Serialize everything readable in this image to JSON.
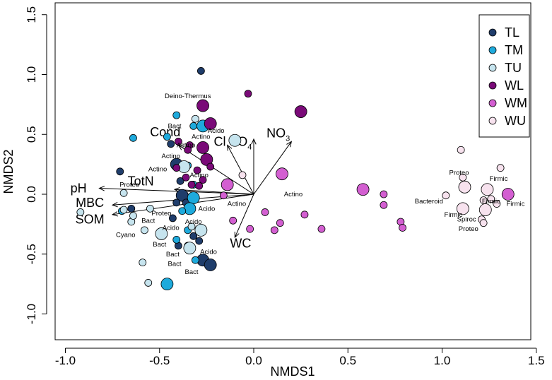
{
  "chart_data": {
    "type": "scatter",
    "xlabel": "NMDS1",
    "ylabel": "NMDS2",
    "xlim": [
      -1.1,
      1.57
    ],
    "ylim": [
      -1.07,
      1.62
    ],
    "xticks": [
      -1.0,
      -0.5,
      0.0,
      0.5,
      1.0,
      1.5
    ],
    "xtick_labels": [
      "-1.0",
      "-0.5",
      "0.0",
      "0.5",
      "1.0",
      "1.5"
    ],
    "yticks": [
      -1.0,
      -0.5,
      0.0,
      0.5,
      1.0,
      1.5
    ],
    "ytick_labels": [
      "-1.0",
      "-0.5",
      "0.0",
      "0.5",
      "1.0",
      "1.5"
    ],
    "legend_position": "top-right",
    "series": [
      {
        "name": "TL",
        "color": "#1f3d6b",
        "points": [
          [
            -0.28,
            1.03,
            "s"
          ],
          [
            -0.44,
            0.42,
            "s"
          ],
          [
            -0.71,
            0.19,
            "s"
          ],
          [
            -0.41,
            0.25,
            "l"
          ],
          [
            -0.39,
            0.11,
            "s"
          ],
          [
            -0.38,
            -0.01,
            "l"
          ],
          [
            -0.41,
            -0.07,
            "s"
          ],
          [
            -0.36,
            -0.07,
            "s"
          ],
          [
            -0.65,
            -0.12,
            "s"
          ],
          [
            -0.43,
            -0.2,
            "s"
          ],
          [
            -0.32,
            -0.35,
            "s"
          ],
          [
            -0.29,
            -0.39,
            "s"
          ],
          [
            -0.4,
            -0.43,
            "s"
          ],
          [
            -0.35,
            -0.43,
            "s"
          ],
          [
            -0.27,
            -0.55,
            "l"
          ],
          [
            -0.23,
            -0.59,
            "l"
          ]
        ]
      },
      {
        "name": "TM",
        "color": "#1eaadc",
        "points": [
          [
            -0.46,
            0.48,
            "s"
          ],
          [
            -0.64,
            0.47,
            "s"
          ],
          [
            -0.41,
            0.66,
            "s"
          ],
          [
            -0.32,
            0.57,
            "s"
          ],
          [
            -0.27,
            0.57,
            "l"
          ],
          [
            -0.35,
            0.24,
            "s"
          ],
          [
            -0.32,
            0.08,
            "s"
          ],
          [
            -0.32,
            -0.03,
            "l"
          ],
          [
            -0.34,
            -0.12,
            "l"
          ],
          [
            -0.38,
            -0.14,
            "s"
          ],
          [
            -0.35,
            -0.3,
            "s"
          ],
          [
            -0.41,
            -0.38,
            "s"
          ],
          [
            -0.33,
            -0.45,
            "s"
          ],
          [
            -0.31,
            -0.55,
            "s"
          ],
          [
            -0.46,
            -0.75,
            "l"
          ],
          [
            -0.7,
            -0.14,
            "s"
          ]
        ]
      },
      {
        "name": "TU",
        "color": "#c6e4ee",
        "points": [
          [
            -0.31,
            0.63,
            "s"
          ],
          [
            -0.1,
            0.45,
            "l"
          ],
          [
            -0.37,
            0.23,
            "l"
          ],
          [
            -0.69,
            0.01,
            "s"
          ],
          [
            -0.92,
            -0.15,
            "s"
          ],
          [
            -0.65,
            -0.23,
            "s"
          ],
          [
            -0.64,
            -0.18,
            "s"
          ],
          [
            -0.58,
            -0.3,
            "s"
          ],
          [
            -0.49,
            -0.33,
            "l"
          ],
          [
            -0.28,
            -0.3,
            "l"
          ],
          [
            -0.34,
            -0.45,
            "l"
          ],
          [
            -0.59,
            -0.57,
            "s"
          ],
          [
            -0.56,
            -0.74,
            "s"
          ],
          [
            -0.69,
            -0.13,
            "s"
          ],
          [
            -0.33,
            -0.27,
            "s"
          ],
          [
            -0.55,
            -0.12,
            "s"
          ]
        ]
      },
      {
        "name": "WL",
        "color": "#7a0a78",
        "points": [
          [
            -0.03,
            0.84,
            "s"
          ],
          [
            -0.27,
            0.74,
            "l"
          ],
          [
            -0.23,
            0.59,
            "l"
          ],
          [
            0.25,
            0.69,
            "l"
          ],
          [
            -0.27,
            0.39,
            "l"
          ],
          [
            -0.4,
            0.44,
            "s"
          ],
          [
            -0.34,
            0.41,
            "s"
          ],
          [
            -0.25,
            0.29,
            "l"
          ],
          [
            -0.35,
            0.37,
            "s"
          ],
          [
            -0.23,
            0.23,
            "s"
          ],
          [
            -0.3,
            0.2,
            "s"
          ],
          [
            -0.41,
            0.22,
            "s"
          ],
          [
            -0.27,
            0.12,
            "s"
          ],
          [
            -0.33,
            0.08,
            "s"
          ],
          [
            -0.29,
            0.07,
            "s"
          ],
          [
            -0.36,
            0.14,
            "s"
          ]
        ]
      },
      {
        "name": "WM",
        "color": "#d35fd1",
        "points": [
          [
            -0.14,
            0.08,
            "l"
          ],
          [
            0.15,
            0.17,
            "l"
          ],
          [
            -0.16,
            -0.01,
            "s"
          ],
          [
            0.58,
            0.04,
            "l"
          ],
          [
            0.69,
            -0.09,
            "s"
          ],
          [
            0.69,
            0.0,
            "s"
          ],
          [
            1.35,
            0.0,
            "l"
          ],
          [
            0.14,
            -0.24,
            "s"
          ],
          [
            0.27,
            -0.17,
            "s"
          ],
          [
            0.36,
            -0.29,
            "s"
          ],
          [
            -0.11,
            -0.22,
            "s"
          ],
          [
            0.06,
            -0.15,
            "s"
          ],
          [
            -0.02,
            -0.29,
            "s"
          ],
          [
            0.11,
            -0.3,
            "s"
          ],
          [
            0.78,
            -0.23,
            "s"
          ],
          [
            0.79,
            -0.28,
            "s"
          ]
        ]
      },
      {
        "name": "WU",
        "color": "#f7e2ee",
        "points": [
          [
            1.1,
            0.37,
            "s"
          ],
          [
            1.31,
            0.22,
            "s"
          ],
          [
            1.11,
            0.14,
            "s"
          ],
          [
            1.12,
            0.06,
            "l"
          ],
          [
            1.24,
            0.04,
            "l"
          ],
          [
            1.26,
            -0.04,
            "s"
          ],
          [
            1.22,
            -0.05,
            "s"
          ],
          [
            1.29,
            -0.08,
            "s"
          ],
          [
            1.02,
            -0.01,
            "s"
          ],
          [
            1.11,
            -0.12,
            "l"
          ],
          [
            1.23,
            -0.13,
            "l"
          ],
          [
            1.21,
            -0.21,
            "s"
          ],
          [
            1.22,
            -0.24,
            "s"
          ],
          [
            -0.06,
            0.16,
            "s"
          ]
        ]
      }
    ],
    "vectors": [
      {
        "label": "Cond",
        "sub": "",
        "x": -0.4,
        "y": 0.41,
        "lx": -0.47,
        "ly": 0.52
      },
      {
        "label": "Cl",
        "sub": "",
        "x": -0.14,
        "y": 0.41,
        "lx": -0.18,
        "ly": 0.44
      },
      {
        "label": "SO",
        "sub": "4",
        "x": 0.0,
        "y": 0.46,
        "lx": -0.07,
        "ly": 0.44
      },
      {
        "label": "NO",
        "sub": "3",
        "x": 0.2,
        "y": 0.44,
        "lx": 0.13,
        "ly": 0.51
      },
      {
        "label": "TotN",
        "sub": "",
        "x": -0.42,
        "y": 0.04,
        "lx": -0.6,
        "ly": 0.11
      },
      {
        "label": "pH",
        "sub": "",
        "x": -0.82,
        "y": 0.05,
        "lx": -0.93,
        "ly": 0.05
      },
      {
        "label": "MBC",
        "sub": "",
        "x": -0.75,
        "y": -0.09,
        "lx": -0.87,
        "ly": -0.07
      },
      {
        "label": "SOM",
        "sub": "",
        "x": -0.75,
        "y": -0.17,
        "lx": -0.87,
        "ly": -0.21
      },
      {
        "label": "WC",
        "sub": "",
        "x": -0.1,
        "y": -0.36,
        "lx": -0.07,
        "ly": -0.41
      }
    ],
    "taxa_labels": [
      {
        "text": "Deino-Thermus",
        "x": -0.35,
        "y": 0.82
      },
      {
        "text": "Bact",
        "x": -0.42,
        "y": 0.57
      },
      {
        "text": "Acido",
        "x": -0.2,
        "y": 0.53
      },
      {
        "text": "Actino",
        "x": -0.28,
        "y": 0.48
      },
      {
        "text": "Actino",
        "x": -0.36,
        "y": 0.41
      },
      {
        "text": "Actino",
        "x": -0.44,
        "y": 0.32
      },
      {
        "text": "Actino",
        "x": -0.51,
        "y": 0.21
      },
      {
        "text": "Actino",
        "x": -0.29,
        "y": 0.16
      },
      {
        "text": "Proteo",
        "x": -0.66,
        "y": 0.08
      },
      {
        "text": "Actino",
        "x": 0.21,
        "y": 0.0
      },
      {
        "text": "Actino",
        "x": -0.09,
        "y": -0.08
      },
      {
        "text": "Acido",
        "x": -0.25,
        "y": -0.12
      },
      {
        "text": "Proteo",
        "x": -0.49,
        "y": -0.16
      },
      {
        "text": "Bact",
        "x": -0.56,
        "y": -0.22
      },
      {
        "text": "Acido",
        "x": -0.32,
        "y": -0.23
      },
      {
        "text": "Cyano",
        "x": -0.68,
        "y": -0.34
      },
      {
        "text": "Acido",
        "x": -0.44,
        "y": -0.28
      },
      {
        "text": "Bact",
        "x": -0.5,
        "y": -0.42
      },
      {
        "text": "Acido",
        "x": -0.24,
        "y": -0.48
      },
      {
        "text": "Bact",
        "x": -0.43,
        "y": -0.5
      },
      {
        "text": "Bact",
        "x": -0.42,
        "y": -0.58
      },
      {
        "text": "Bact",
        "x": -0.33,
        "y": -0.65
      },
      {
        "text": "Proteo",
        "x": 1.09,
        "y": 0.18
      },
      {
        "text": "Firmic",
        "x": 1.3,
        "y": 0.13
      },
      {
        "text": "Bacteroid",
        "x": 0.93,
        "y": -0.06
      },
      {
        "text": "Firmic",
        "x": 1.26,
        "y": -0.06
      },
      {
        "text": "Firmic",
        "x": 1.39,
        "y": -0.08
      },
      {
        "text": "Firmic",
        "x": 1.06,
        "y": -0.17
      },
      {
        "text": "Spiroc",
        "x": 1.13,
        "y": -0.21
      },
      {
        "text": "Proteo",
        "x": 1.14,
        "y": -0.29
      }
    ]
  }
}
